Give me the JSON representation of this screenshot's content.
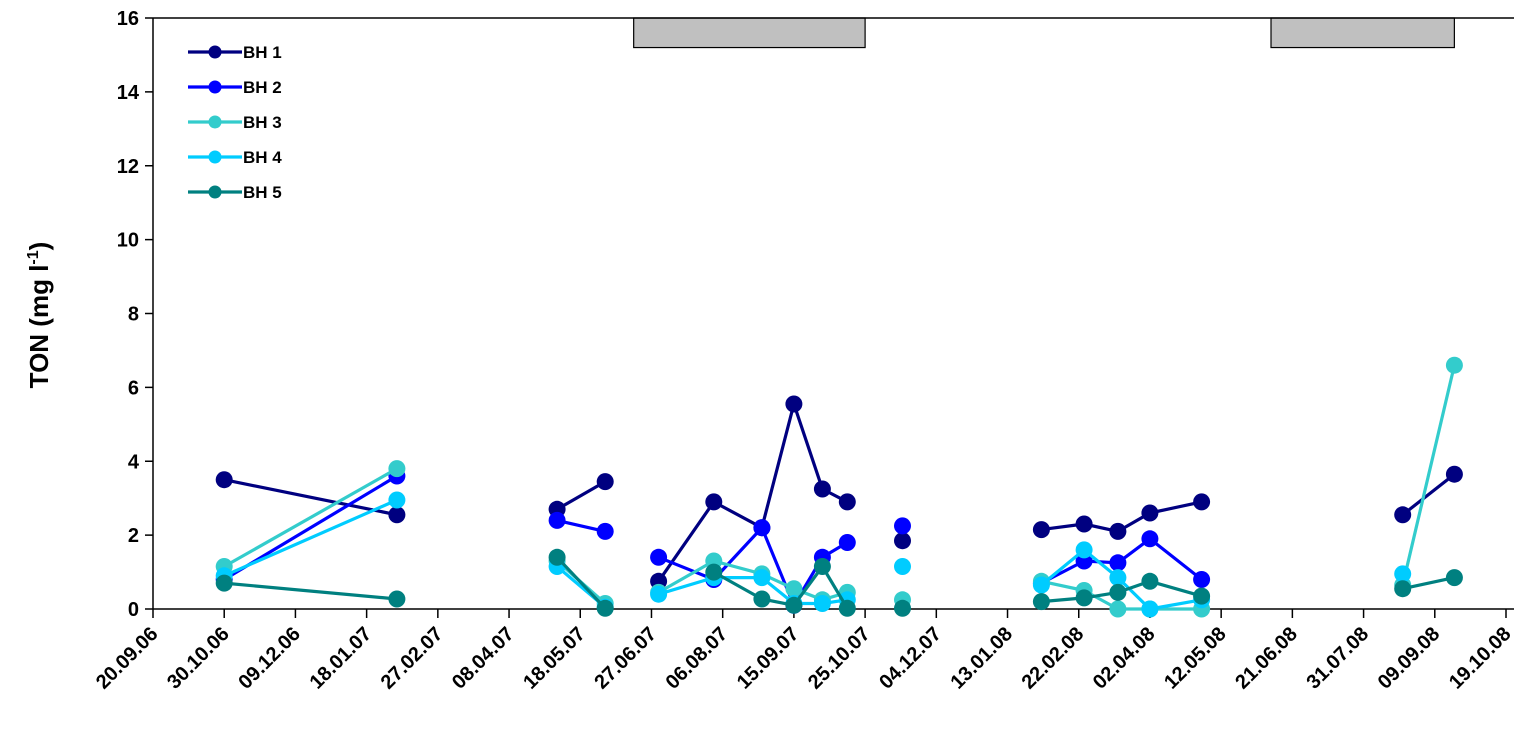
{
  "chart_data": {
    "type": "line",
    "title": "",
    "xlabel": "",
    "ylabel": "TON (mg l-1)",
    "ylabel_main": "TON (mg l",
    "ylabel_sup": "-1",
    "ylabel_end": ")",
    "ylim": [
      0,
      16
    ],
    "y_ticks": [
      "0",
      "2",
      "4",
      "6",
      "8",
      "10",
      "12",
      "14",
      "16"
    ],
    "x_range": [
      "2006-09-20",
      "2008-10-19"
    ],
    "x_tick_labels": [
      "20.09.06",
      "30.10.06",
      "09.12.06",
      "18.01.07",
      "27.02.07",
      "08.04.07",
      "18.05.07",
      "27.06.07",
      "06.08.07",
      "15.09.07",
      "25.10.07",
      "04.12.07",
      "13.01.08",
      "22.02.08",
      "02.04.08",
      "12.05.08",
      "21.06.08",
      "31.07.08",
      "09.09.08",
      "19.10.08"
    ],
    "legend_placement": "top-left",
    "grid": false,
    "shaded_periods": [
      {
        "start": "2007-06-17",
        "end": "2007-10-25",
        "y_from": 15.2,
        "y_to": 16
      },
      {
        "start": "2008-06-09",
        "end": "2008-09-20",
        "y_from": 15.2,
        "y_to": 16
      }
    ],
    "series": [
      {
        "name": "BH 1",
        "color": "#000080",
        "segments": [
          [
            [
              "2006-10-30",
              3.5
            ],
            [
              "2007-02-04",
              2.55
            ]
          ],
          [
            [
              "2007-05-05",
              2.7
            ],
            [
              "2007-06-01",
              3.45
            ]
          ],
          [
            [
              "2007-07-01",
              0.75
            ],
            [
              "2007-08-01",
              2.9
            ],
            [
              "2007-08-28",
              2.2
            ],
            [
              "2007-09-15",
              5.55
            ],
            [
              "2007-10-01",
              3.25
            ],
            [
              "2007-10-15",
              2.9
            ]
          ],
          [
            [
              "2007-11-15",
              1.85
            ]
          ],
          [
            [
              "2008-02-01",
              2.15
            ],
            [
              "2008-02-25",
              2.3
            ],
            [
              "2008-03-15",
              2.1
            ],
            [
              "2008-04-02",
              2.6
            ],
            [
              "2008-05-01",
              2.9
            ]
          ],
          [
            [
              "2008-08-22",
              2.55
            ],
            [
              "2008-09-20",
              3.65
            ]
          ]
        ]
      },
      {
        "name": "BH 2",
        "color": "#0000FF",
        "segments": [
          [
            [
              "2006-10-30",
              0.8
            ],
            [
              "2007-02-04",
              3.6
            ]
          ],
          [
            [
              "2007-05-05",
              2.4
            ],
            [
              "2007-06-01",
              2.1
            ]
          ],
          [
            [
              "2007-07-01",
              1.4
            ],
            [
              "2007-08-01",
              0.8
            ],
            [
              "2007-08-28",
              2.2
            ],
            [
              "2007-09-15",
              0.1
            ],
            [
              "2007-10-01",
              1.4
            ],
            [
              "2007-10-15",
              1.8
            ]
          ],
          [
            [
              "2007-11-15",
              2.25
            ]
          ],
          [
            [
              "2008-02-01",
              0.7
            ],
            [
              "2008-02-25",
              1.3
            ],
            [
              "2008-03-15",
              1.25
            ],
            [
              "2008-04-02",
              1.9
            ],
            [
              "2008-05-01",
              0.8
            ]
          ]
        ]
      },
      {
        "name": "BH 3",
        "color": "#33CCCC",
        "segments": [
          [
            [
              "2006-10-30",
              1.15
            ],
            [
              "2007-02-04",
              3.8
            ]
          ],
          [
            [
              "2007-05-05",
              1.3
            ],
            [
              "2007-06-01",
              0.15
            ]
          ],
          [
            [
              "2007-07-01",
              0.45
            ],
            [
              "2007-08-01",
              1.3
            ],
            [
              "2007-08-28",
              0.95
            ],
            [
              "2007-09-15",
              0.55
            ],
            [
              "2007-10-01",
              0.25
            ],
            [
              "2007-10-15",
              0.45
            ]
          ],
          [
            [
              "2007-11-15",
              0.25
            ]
          ],
          [
            [
              "2008-02-01",
              0.75
            ],
            [
              "2008-02-25",
              0.5
            ],
            [
              "2008-03-15",
              0.0
            ],
            [
              "2008-04-02",
              0.0
            ],
            [
              "2008-05-01",
              0.0
            ]
          ],
          [
            [
              "2008-08-22",
              0.65
            ],
            [
              "2008-09-20",
              6.6
            ]
          ]
        ]
      },
      {
        "name": "BH 4",
        "color": "#00CCFF",
        "segments": [
          [
            [
              "2006-10-30",
              0.9
            ],
            [
              "2007-02-04",
              2.95
            ]
          ],
          [
            [
              "2007-05-05",
              1.15
            ],
            [
              "2007-06-01",
              0.05
            ]
          ],
          [
            [
              "2007-07-01",
              0.4
            ],
            [
              "2007-08-01",
              0.85
            ],
            [
              "2007-08-28",
              0.85
            ],
            [
              "2007-09-15",
              0.15
            ],
            [
              "2007-10-01",
              0.15
            ],
            [
              "2007-10-15",
              0.25
            ]
          ],
          [
            [
              "2007-11-15",
              1.15
            ]
          ],
          [
            [
              "2008-02-01",
              0.65
            ],
            [
              "2008-02-25",
              1.6
            ],
            [
              "2008-03-15",
              0.85
            ],
            [
              "2008-04-02",
              0.0
            ],
            [
              "2008-05-01",
              0.25
            ]
          ],
          [
            [
              "2008-08-22",
              0.95
            ]
          ]
        ]
      },
      {
        "name": "BH 5",
        "color": "#008080",
        "segments": [
          [
            [
              "2006-10-30",
              0.7
            ],
            [
              "2007-02-04",
              0.27
            ]
          ],
          [
            [
              "2007-05-05",
              1.4
            ],
            [
              "2007-06-01",
              0.02
            ]
          ],
          [
            [
              "2007-08-01",
              1.0
            ],
            [
              "2007-08-28",
              0.27
            ],
            [
              "2007-09-15",
              0.1
            ],
            [
              "2007-10-01",
              1.15
            ],
            [
              "2007-10-15",
              0.02
            ]
          ],
          [
            [
              "2007-11-15",
              0.02
            ]
          ],
          [
            [
              "2008-02-01",
              0.2
            ],
            [
              "2008-02-25",
              0.3
            ],
            [
              "2008-03-15",
              0.45
            ],
            [
              "2008-04-02",
              0.75
            ],
            [
              "2008-05-01",
              0.35
            ]
          ],
          [
            [
              "2008-08-22",
              0.55
            ],
            [
              "2008-09-20",
              0.85
            ]
          ]
        ]
      }
    ]
  }
}
